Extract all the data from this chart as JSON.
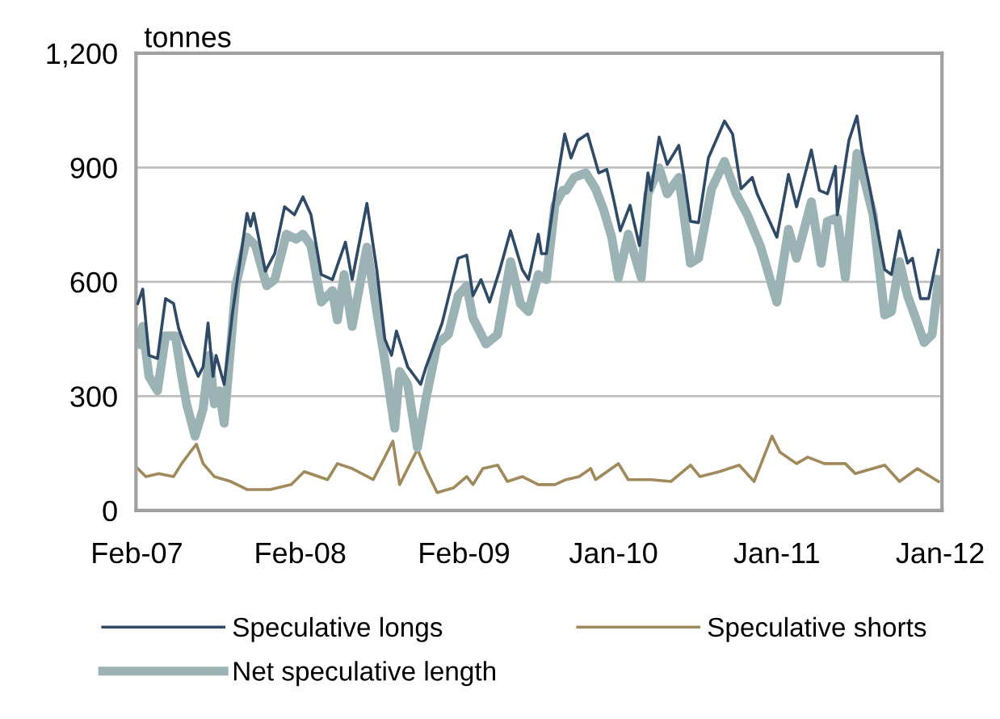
{
  "chart_data": {
    "type": "line",
    "ylabel": "tonnes",
    "xlim": [
      "2007-01-30",
      "2012-01-05"
    ],
    "xticks": [
      {
        "value": "2007-02-01",
        "label": "Feb-07"
      },
      {
        "value": "2008-02-01",
        "label": "Feb-08"
      },
      {
        "value": "2009-02-01",
        "label": "Feb-09"
      },
      {
        "value": "2010-01-01",
        "label": "Jan-10"
      },
      {
        "value": "2011-01-01",
        "label": "Jan-11"
      },
      {
        "value": "2012-01-01",
        "label": "Jan-12"
      }
    ],
    "ylim": [
      0,
      1200
    ],
    "yticks": [
      0,
      300,
      600,
      900,
      {
        "value": 1200,
        "label": "1,200"
      }
    ],
    "grid": "y",
    "legend": "bottom",
    "marker": "none",
    "line_style": "solid",
    "series": [
      {
        "name": "Speculative longs",
        "color": "#2e4a66",
        "x": [
          "2007-02-03",
          "2007-02-14",
          "2007-02-28",
          "2007-03-19",
          "2007-04-06",
          "2007-04-24",
          "2007-05-05",
          "2007-05-16",
          "2007-06-18",
          "2007-06-29",
          "2007-07-10",
          "2007-07-21",
          "2007-07-28",
          "2007-08-15",
          "2007-09-03",
          "2007-10-05",
          "2007-10-13",
          "2007-10-20",
          "2007-11-15",
          "2007-12-06",
          "2007-12-28",
          "2008-01-19",
          "2008-02-07",
          "2008-02-25",
          "2008-03-19",
          "2008-04-13",
          "2008-05-12",
          "2008-05-27",
          "2008-06-29",
          "2008-07-21",
          "2008-08-08",
          "2008-08-23",
          "2008-09-03",
          "2008-09-28",
          "2008-10-27",
          "2008-11-07",
          "2008-12-14",
          "2009-01-19",
          "2009-02-07",
          "2009-02-21",
          "2009-03-11",
          "2009-03-30",
          "2009-04-21",
          "2009-05-16",
          "2009-06-11",
          "2009-06-25",
          "2009-07-17",
          "2009-07-24",
          "2009-08-04",
          "2009-08-23",
          "2009-09-14",
          "2009-09-28",
          "2009-10-13",
          "2009-11-04",
          "2009-11-29",
          "2009-12-17",
          "2010-01-01",
          "2010-01-16",
          "2010-02-07",
          "2010-02-28",
          "2010-03-19",
          "2010-03-26",
          "2010-04-13",
          "2010-05-01",
          "2010-05-27",
          "2010-06-07",
          "2010-06-22",
          "2010-07-10",
          "2010-08-01",
          "2010-09-06",
          "2010-09-24",
          "2010-10-13",
          "2010-11-07",
          "2010-11-18",
          "2011-01-01",
          "2011-01-27",
          "2011-02-14",
          "2011-03-19",
          "2011-04-06",
          "2011-04-24",
          "2011-05-12",
          "2011-05-16",
          "2011-06-11",
          "2011-06-29",
          "2011-07-10",
          "2011-07-28",
          "2011-08-30",
          "2011-09-14",
          "2011-10-02",
          "2011-10-20",
          "2011-10-31",
          "2011-11-18",
          "2011-12-06",
          "2011-12-28"
        ],
        "values": [
          543,
          581,
          407,
          399,
          556,
          543,
          479,
          441,
          352,
          377,
          492,
          352,
          407,
          331,
          522,
          780,
          746,
          780,
          628,
          674,
          797,
          776,
          823,
          776,
          619,
          606,
          704,
          606,
          806,
          632,
          450,
          407,
          471,
          377,
          331,
          373,
          492,
          662,
          670,
          564,
          606,
          547,
          628,
          734,
          632,
          606,
          725,
          674,
          674,
          831,
          988,
          925,
          971,
          988,
          886,
          895,
          818,
          734,
          801,
          695,
          886,
          840,
          980,
          908,
          958,
          882,
          759,
          755,
          925,
          1022,
          988,
          844,
          874,
          831,
          717,
          882,
          797,
          946,
          840,
          831,
          903,
          776,
          971,
          1035,
          946,
          844,
          632,
          619,
          734,
          649,
          662,
          556,
          556,
          683
        ]
      },
      {
        "name": "Speculative shorts",
        "color": "#a08a5c",
        "x": [
          "2007-02-03",
          "2007-02-21",
          "2007-03-22",
          "2007-04-24",
          "2007-05-12",
          "2007-05-31",
          "2007-06-14",
          "2007-06-29",
          "2007-07-24",
          "2007-08-30",
          "2007-10-05",
          "2007-11-26",
          "2008-01-12",
          "2008-02-10",
          "2008-04-02",
          "2008-04-24",
          "2008-05-27",
          "2008-07-13",
          "2008-08-08",
          "2008-08-26",
          "2008-09-10",
          "2008-10-20",
          "2008-11-07",
          "2008-12-03",
          "2009-01-08",
          "2009-02-07",
          "2009-02-21",
          "2009-03-15",
          "2009-04-17",
          "2009-05-09",
          "2009-06-11",
          "2009-07-17",
          "2009-08-23",
          "2009-09-17",
          "2009-10-16",
          "2009-11-11",
          "2009-11-22",
          "2010-01-12",
          "2010-02-03",
          "2010-03-26",
          "2010-05-09",
          "2010-06-22",
          "2010-07-13",
          "2010-08-26",
          "2010-10-09",
          "2010-11-11",
          "2010-12-21",
          "2011-01-08",
          "2011-02-14",
          "2011-03-11",
          "2011-04-17",
          "2011-06-03",
          "2011-06-25",
          "2011-08-30",
          "2011-10-02",
          "2011-11-11",
          "2011-12-28"
        ],
        "values": [
          110,
          89,
          97,
          89,
          123,
          153,
          174,
          123,
          89,
          76,
          55,
          55,
          68,
          102,
          81,
          123,
          110,
          81,
          140,
          182,
          68,
          161,
          110,
          47,
          59,
          89,
          68,
          110,
          119,
          76,
          89,
          68,
          68,
          81,
          89,
          110,
          81,
          123,
          81,
          81,
          76,
          119,
          89,
          102,
          119,
          76,
          195,
          153,
          123,
          140,
          123,
          123,
          97,
          119,
          76,
          110,
          76
        ]
      },
      {
        "name": "Net speculative length",
        "color": "#9bb3b5",
        "x": [
          "2007-02-03",
          "2007-02-14",
          "2007-02-28",
          "2007-03-19",
          "2007-04-06",
          "2007-04-28",
          "2007-05-12",
          "2007-05-23",
          "2007-06-11",
          "2007-06-29",
          "2007-07-13",
          "2007-07-24",
          "2007-08-04",
          "2007-08-15",
          "2007-09-10",
          "2007-10-05",
          "2007-10-24",
          "2007-11-18",
          "2007-12-06",
          "2008-01-01",
          "2008-01-23",
          "2008-02-07",
          "2008-02-25",
          "2008-03-19",
          "2008-04-13",
          "2008-04-24",
          "2008-05-09",
          "2008-05-27",
          "2008-06-29",
          "2008-07-21",
          "2008-08-08",
          "2008-08-30",
          "2008-09-10",
          "2008-09-28",
          "2008-10-20",
          "2008-11-07",
          "2008-12-03",
          "2008-12-28",
          "2009-01-19",
          "2009-02-07",
          "2009-02-21",
          "2009-03-22",
          "2009-04-17",
          "2009-05-16",
          "2009-06-07",
          "2009-06-25",
          "2009-07-17",
          "2009-08-04",
          "2009-08-23",
          "2009-09-10",
          "2009-09-17",
          "2009-10-05",
          "2009-10-31",
          "2009-11-22",
          "2009-12-10",
          "2009-12-28",
          "2010-01-12",
          "2010-02-03",
          "2010-03-04",
          "2010-03-19",
          "2010-04-13",
          "2010-05-01",
          "2010-05-27",
          "2010-06-22",
          "2010-07-10",
          "2010-08-08",
          "2010-09-06",
          "2010-10-02",
          "2010-10-27",
          "2010-11-26",
          "2011-01-01",
          "2011-01-27",
          "2011-02-14",
          "2011-03-19",
          "2011-04-10",
          "2011-04-24",
          "2011-05-16",
          "2011-06-03",
          "2011-06-29",
          "2011-07-17",
          "2011-08-04",
          "2011-08-30",
          "2011-09-14",
          "2011-10-02",
          "2011-10-20",
          "2011-11-07",
          "2011-11-26",
          "2011-12-14",
          "2011-12-28"
        ],
        "values": [
          437,
          483,
          352,
          314,
          458,
          458,
          352,
          280,
          195,
          267,
          407,
          280,
          314,
          229,
          590,
          717,
          695,
          590,
          606,
          725,
          712,
          725,
          695,
          547,
          577,
          500,
          619,
          483,
          691,
          522,
          394,
          216,
          365,
          331,
          165,
          288,
          437,
          462,
          564,
          590,
          505,
          437,
          462,
          653,
          543,
          522,
          619,
          606,
          801,
          840,
          840,
          874,
          886,
          844,
          789,
          717,
          611,
          725,
          611,
          831,
          899,
          831,
          874,
          649,
          662,
          844,
          916,
          831,
          776,
          691,
          547,
          738,
          662,
          810,
          649,
          759,
          768,
          611,
          937,
          861,
          776,
          513,
          522,
          653,
          564,
          505,
          441,
          462,
          606
        ]
      }
    ]
  }
}
